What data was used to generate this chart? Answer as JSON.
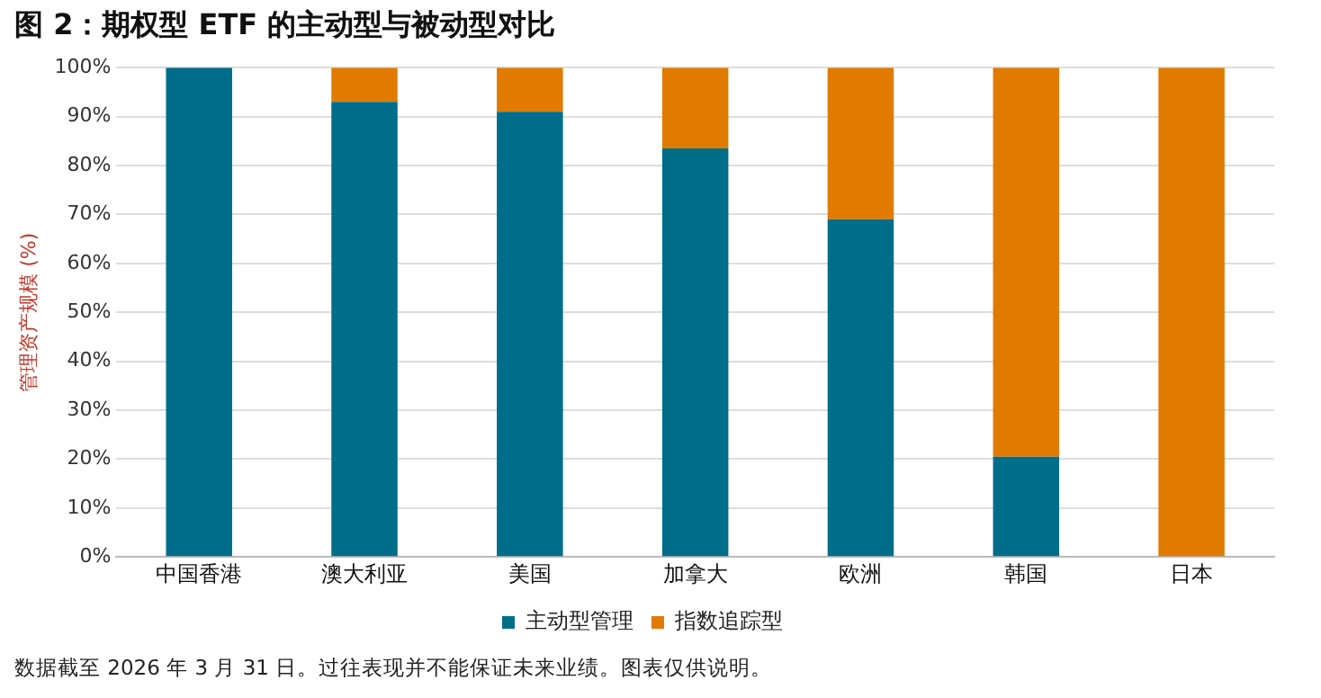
{
  "chart_data": {
    "type": "bar",
    "title": "图 2：期权型 ETF 的主动型与被动型对比",
    "ylabel": "管理资产规模 (%)",
    "categories": [
      "中国香港",
      "澳大利亚",
      "美国",
      "加拿大",
      "欧洲",
      "韩国",
      "日本"
    ],
    "stacked": true,
    "series": [
      {
        "name": "主动型管理",
        "color": "#006e8a",
        "values": [
          100,
          93,
          91,
          83.5,
          69,
          20.5,
          0
        ]
      },
      {
        "name": "指数追踪型",
        "color": "#e07b00",
        "values": [
          0,
          7,
          9,
          16.5,
          31,
          79.5,
          100
        ]
      }
    ],
    "ylim": [
      0,
      100
    ],
    "yticks": [
      {
        "value": 0,
        "label": "0%"
      },
      {
        "value": 10,
        "label": "10%"
      },
      {
        "value": 20,
        "label": "20%"
      },
      {
        "value": 30,
        "label": "30%"
      },
      {
        "value": 40,
        "label": "40%"
      },
      {
        "value": 50,
        "label": "50%"
      },
      {
        "value": 60,
        "label": "60%"
      },
      {
        "value": 70,
        "label": "70%"
      },
      {
        "value": 80,
        "label": "80%"
      },
      {
        "value": 90,
        "label": "90%"
      },
      {
        "value": 100,
        "label": "100%"
      }
    ],
    "grid": "y",
    "legend": "bottom",
    "annotations": [
      "数据截至 2026 年 3 月 31 日。过往表现并不能保证未来业绩。图表仅供说明。"
    ]
  }
}
